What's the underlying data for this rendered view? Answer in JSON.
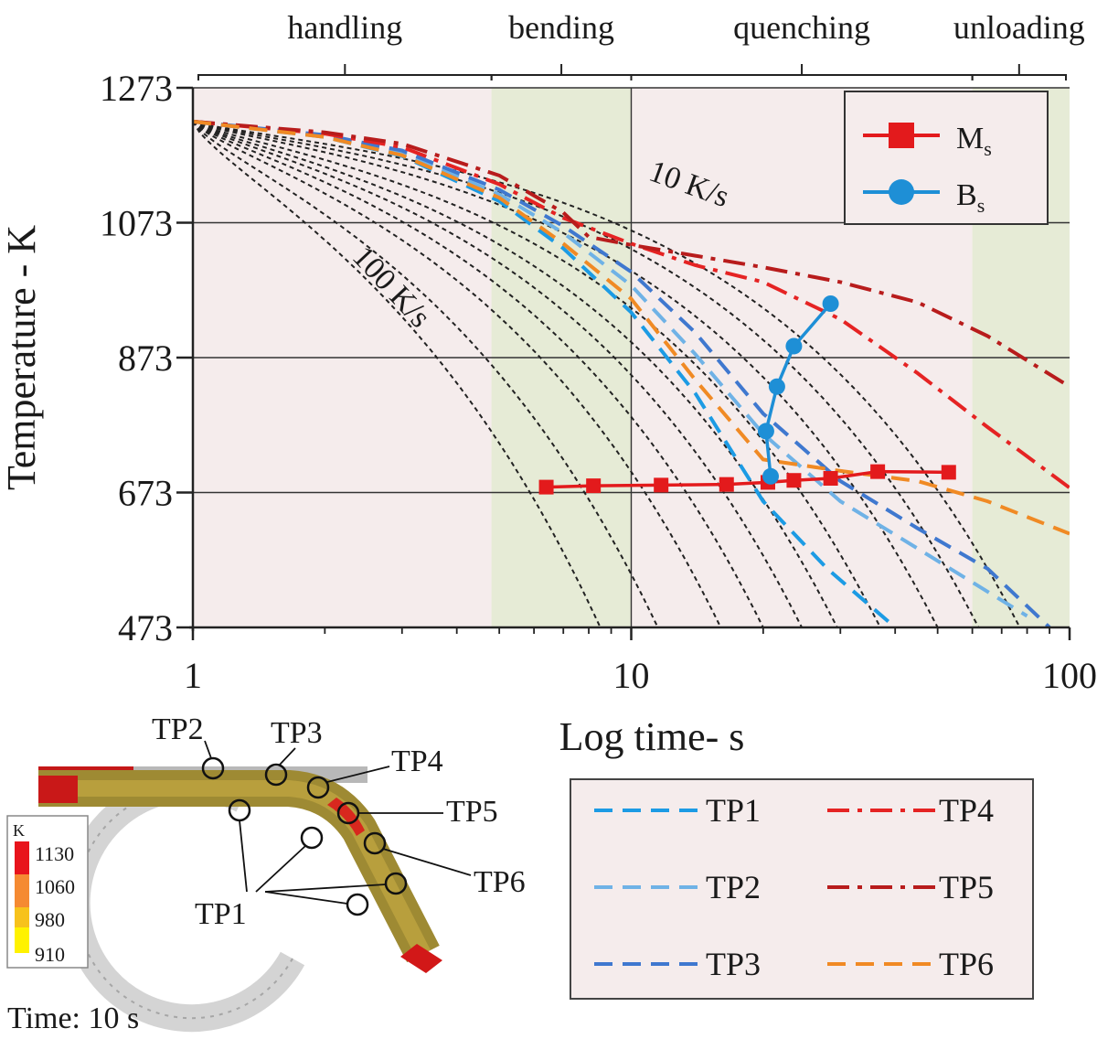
{
  "chart_data": {
    "type": "line",
    "xscale": "log",
    "xlim": [
      1,
      100
    ],
    "ylim": [
      473,
      1273
    ],
    "xlabel": "Log time- s",
    "ylabel": "Temperature - K",
    "xticks": [
      "1",
      "10",
      "100"
    ],
    "yticks": [
      "1273",
      "1073",
      "873",
      "673",
      "473"
    ],
    "grid": true,
    "phases": [
      {
        "label": "handling",
        "start": 1,
        "end": 4.8,
        "shaded": false
      },
      {
        "label": "bending",
        "start": 4.8,
        "end": 10,
        "shaded": true
      },
      {
        "label": "quenching",
        "start": 10,
        "end": 60,
        "shaded": false
      },
      {
        "label": "unloading",
        "start": 60,
        "end": 100,
        "shaded": true
      }
    ],
    "cooling_rate_labels": {
      "slow": "10 K/s",
      "fast": "100 K/s"
    },
    "cooling_curve_endpoints_s": [
      8.5,
      11.5,
      16,
      20,
      24.5,
      29.5,
      37,
      50,
      62,
      77
    ],
    "series": [
      {
        "name": "Ms",
        "marker": "square",
        "color": "#e31a1c",
        "style": "solid",
        "x": [
          6.4,
          8.2,
          11.7,
          16.5,
          20.5,
          23.5,
          28.5,
          36.5,
          53
        ],
        "y": [
          681,
          683,
          684,
          685,
          688,
          691,
          694,
          704,
          703
        ]
      },
      {
        "name": "Bs",
        "marker": "circle",
        "color": "#1e8fd6",
        "style": "solid",
        "x": [
          20.8,
          20.3,
          21.5,
          23.5,
          28.5
        ],
        "y": [
          697,
          764,
          830,
          890,
          953
        ]
      },
      {
        "name": "TP1",
        "color": "#1c9be4",
        "style": "dashed",
        "x": [
          1,
          2,
          3,
          5,
          7,
          10,
          14,
          20,
          28,
          40
        ],
        "y": [
          1223,
          1200,
          1172,
          1105,
          1035,
          940,
          820,
          660,
          560,
          473
        ]
      },
      {
        "name": "TP2",
        "color": "#6fb2e6",
        "style": "dashed",
        "x": [
          1,
          2,
          3,
          5,
          7,
          10,
          14,
          20,
          30,
          45,
          60,
          80
        ],
        "y": [
          1223,
          1202,
          1177,
          1115,
          1058,
          980,
          878,
          760,
          660,
          590,
          540,
          490
        ]
      },
      {
        "name": "TP3",
        "color": "#3f78cf",
        "style": "dashed",
        "x": [
          1,
          2,
          3,
          5,
          7,
          10,
          14,
          20,
          30,
          45,
          65,
          90
        ],
        "y": [
          1223,
          1203,
          1180,
          1122,
          1068,
          1000,
          910,
          790,
          690,
          620,
          560,
          473
        ]
      },
      {
        "name": "TP4",
        "color": "#e52323",
        "style": "dashdot",
        "x": [
          1,
          2,
          3,
          5,
          7,
          10,
          14,
          20,
          30,
          45,
          65,
          100
        ],
        "y": [
          1223,
          1205,
          1185,
          1130,
          1080,
          1042,
          1010,
          985,
          930,
          850,
          770,
          680
        ]
      },
      {
        "name": "TP5",
        "color": "#b81c1c",
        "style": "dashdot",
        "x": [
          1,
          2,
          3,
          5,
          7,
          8,
          10,
          14,
          20,
          30,
          45,
          65,
          100
        ],
        "y": [
          1223,
          1207,
          1190,
          1143,
          1088,
          1052,
          1040,
          1024,
          1007,
          985,
          955,
          905,
          830
        ]
      },
      {
        "name": "TP6",
        "color": "#f08a24",
        "style": "dashed",
        "x": [
          1,
          2,
          3,
          5,
          7,
          10,
          14,
          20,
          30,
          45,
          65,
          100
        ],
        "y": [
          1223,
          1200,
          1173,
          1110,
          1042,
          960,
          840,
          722,
          705,
          690,
          660,
          612
        ]
      }
    ]
  },
  "legends": {
    "marker_legend": [
      {
        "name": "M",
        "sub": "s",
        "marker": "square",
        "color": "#e31a1c"
      },
      {
        "name": "B",
        "sub": "s",
        "marker": "circle",
        "color": "#1e8fd6"
      }
    ],
    "line_legend": [
      {
        "name": "TP1",
        "color": "#1c9be4",
        "style": "dashed"
      },
      {
        "name": "TP4",
        "color": "#e52323",
        "style": "dashdot"
      },
      {
        "name": "TP2",
        "color": "#6fb2e6",
        "style": "dashed"
      },
      {
        "name": "TP5",
        "color": "#b81c1c",
        "style": "dashdot"
      },
      {
        "name": "TP3",
        "color": "#3f78cf",
        "style": "dashed"
      },
      {
        "name": "TP6",
        "color": "#f08a24",
        "style": "dashed"
      }
    ]
  },
  "inset": {
    "labels": {
      "tp1": "TP1",
      "tp2": "TP2",
      "tp3": "TP3",
      "tp4": "TP4",
      "tp5": "TP5",
      "tp6": "TP6"
    },
    "colorbar_unit": "K",
    "colorbar_values": [
      "1130",
      "1060",
      "980",
      "910"
    ],
    "colorbar_colors": [
      "#e8141c",
      "#f58a32",
      "#f7c21c",
      "#fff200"
    ],
    "time_label": "Time: 10 s"
  },
  "colors": {
    "plot_bg": "#f5ecec",
    "shade": "#e6ebd6",
    "reference_curves": "#222222"
  }
}
